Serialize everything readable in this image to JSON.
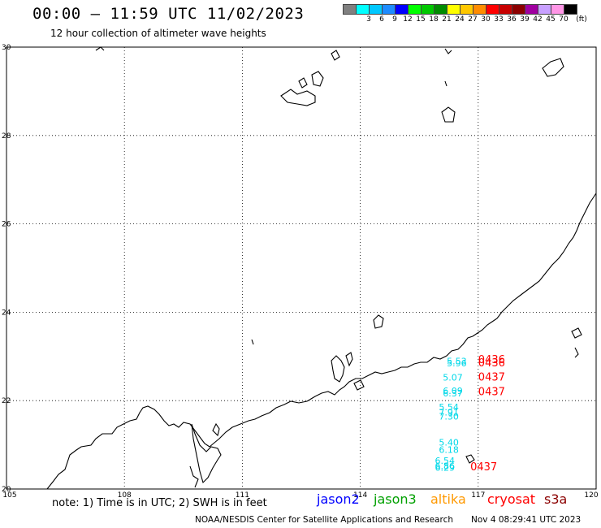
{
  "header": {
    "title": "00:00 – 11:59 UTC 11/02/2023",
    "subtitle": "12 hour collection of altimeter wave heights"
  },
  "legend": {
    "unit_label": "(ft)",
    "steps": [
      {
        "label": "",
        "color": "#808080"
      },
      {
        "label": "3",
        "color": "#00ffff"
      },
      {
        "label": "6",
        "color": "#00c8ff"
      },
      {
        "label": "9",
        "color": "#1e8cff"
      },
      {
        "label": "12",
        "color": "#0000ff"
      },
      {
        "label": "15",
        "color": "#00ff00"
      },
      {
        "label": "18",
        "color": "#00c800"
      },
      {
        "label": "21",
        "color": "#008c00"
      },
      {
        "label": "24",
        "color": "#ffff00"
      },
      {
        "label": "27",
        "color": "#ffc800"
      },
      {
        "label": "30",
        "color": "#ff8c00"
      },
      {
        "label": "33",
        "color": "#ff0000"
      },
      {
        "label": "36",
        "color": "#c80000"
      },
      {
        "label": "39",
        "color": "#8c0000"
      },
      {
        "label": "42",
        "color": "#a000a0"
      },
      {
        "label": "45",
        "color": "#c8a0ff"
      },
      {
        "label": "70",
        "color": "#ff96e6"
      },
      {
        "label": "",
        "color": "#000000"
      }
    ]
  },
  "axes": {
    "lon_ticks": [
      "105",
      "108",
      "111",
      "114",
      "117",
      "120"
    ],
    "lat_ticks": [
      "20",
      "22",
      "24",
      "26",
      "28",
      "30"
    ]
  },
  "observations": [
    {
      "lon": 116.2,
      "lat": 22.82,
      "text": "5.53",
      "color": "#00d8e8"
    },
    {
      "lon": 116.2,
      "lat": 22.78,
      "text": "5.96",
      "color": "#00d8e8"
    },
    {
      "lon": 116.1,
      "lat": 22.45,
      "text": "5.07",
      "color": "#00d8e8"
    },
    {
      "lon": 116.1,
      "lat": 22.15,
      "text": "6.09",
      "color": "#00d8e8"
    },
    {
      "lon": 116.1,
      "lat": 22.1,
      "text": "6.37",
      "color": "#00d8e8"
    },
    {
      "lon": 116.0,
      "lat": 21.78,
      "text": "5.54",
      "color": "#00d8e8"
    },
    {
      "lon": 116.0,
      "lat": 21.66,
      "text": "7.91",
      "color": "#00d8e8"
    },
    {
      "lon": 116.0,
      "lat": 21.57,
      "text": "7.30",
      "color": "#00d8e8"
    },
    {
      "lon": 116.0,
      "lat": 20.98,
      "text": "5.40",
      "color": "#00d8e8"
    },
    {
      "lon": 116.0,
      "lat": 20.82,
      "text": "6.18",
      "color": "#00d8e8"
    },
    {
      "lon": 115.9,
      "lat": 20.57,
      "text": "6.54",
      "color": "#00d8e8"
    },
    {
      "lon": 115.9,
      "lat": 20.45,
      "text": "6.86",
      "color": "#00d8e8"
    },
    {
      "lon": 115.9,
      "lat": 20.41,
      "text": "6.29",
      "color": "#00d8e8"
    }
  ],
  "pass_times": [
    {
      "lon": 117.0,
      "lat": 22.85,
      "text": "0436",
      "color": "#ff0000"
    },
    {
      "lon": 117.0,
      "lat": 22.78,
      "text": "0436",
      "color": "#ff0000"
    },
    {
      "lon": 117.0,
      "lat": 22.45,
      "text": "0437",
      "color": "#ff0000"
    },
    {
      "lon": 117.0,
      "lat": 22.12,
      "text": "0437",
      "color": "#ff0000"
    },
    {
      "lon": 116.8,
      "lat": 20.42,
      "text": "0437",
      "color": "#ff0000"
    }
  ],
  "footer": {
    "note": "note: 1) Time is in UTC; 2) SWH is in feet",
    "satellites": [
      {
        "name": "jason2",
        "color": "#0000ff"
      },
      {
        "name": "jason3",
        "color": "#00a000"
      },
      {
        "name": "altika",
        "color": "#ff9900"
      },
      {
        "name": "cryosat",
        "color": "#ff0000"
      },
      {
        "name": "s3a",
        "color": "#8b0000"
      }
    ],
    "credit": "NOAA/NESDIS Center for Satellite Applications and Research",
    "timestamp": "Nov  4 08:29:41 UTC 2023"
  }
}
